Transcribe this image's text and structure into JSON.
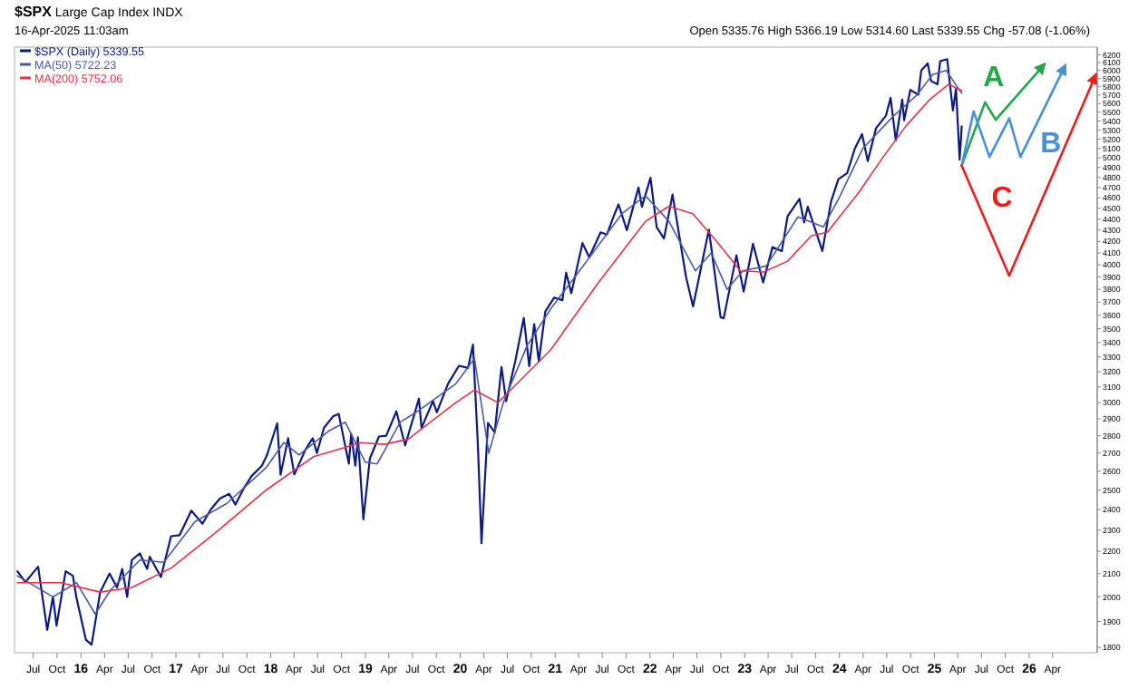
{
  "chart_data": {
    "type": "line",
    "title": "$SPX Large Cap Index INDX",
    "subtitle": "16-Apr-2025 11:03am",
    "annotations": [
      "Open 5335.76 High 5366.19 Low 5314.60 Last 5339.55 Chg -57.08 (-1.06%)"
    ],
    "log": "y",
    "legend": "top left",
    "grid": false,
    "xlim": [
      "2015-04-20",
      "2026-09-20"
    ],
    "ylim": [
      1780,
      6300
    ],
    "xticks": [
      {
        "value": "2015-07-01",
        "label": "Jul"
      },
      {
        "value": "2015-10-01",
        "label": "Oct"
      },
      {
        "value": "2016-01-01",
        "label": "16"
      },
      {
        "value": "2016-04-01",
        "label": "Apr"
      },
      {
        "value": "2016-07-01",
        "label": "Jul"
      },
      {
        "value": "2016-10-01",
        "label": "Oct"
      },
      {
        "value": "2017-01-01",
        "label": "17"
      },
      {
        "value": "2017-04-01",
        "label": "Apr"
      },
      {
        "value": "2017-07-01",
        "label": "Jul"
      },
      {
        "value": "2017-10-01",
        "label": "Oct"
      },
      {
        "value": "2018-01-01",
        "label": "18"
      },
      {
        "value": "2018-04-01",
        "label": "Apr"
      },
      {
        "value": "2018-07-01",
        "label": "Jul"
      },
      {
        "value": "2018-10-01",
        "label": "Oct"
      },
      {
        "value": "2019-01-01",
        "label": "19"
      },
      {
        "value": "2019-04-01",
        "label": "Apr"
      },
      {
        "value": "2019-07-01",
        "label": "Jul"
      },
      {
        "value": "2019-10-01",
        "label": "Oct"
      },
      {
        "value": "2020-01-01",
        "label": "20"
      },
      {
        "value": "2020-04-01",
        "label": "Apr"
      },
      {
        "value": "2020-07-01",
        "label": "Jul"
      },
      {
        "value": "2020-10-01",
        "label": "Oct"
      },
      {
        "value": "2021-01-01",
        "label": "21"
      },
      {
        "value": "2021-04-01",
        "label": "Apr"
      },
      {
        "value": "2021-07-01",
        "label": "Jul"
      },
      {
        "value": "2021-10-01",
        "label": "Oct"
      },
      {
        "value": "2022-01-01",
        "label": "22"
      },
      {
        "value": "2022-04-01",
        "label": "Apr"
      },
      {
        "value": "2022-07-01",
        "label": "Jul"
      },
      {
        "value": "2022-10-01",
        "label": "Oct"
      },
      {
        "value": "2023-01-01",
        "label": "23"
      },
      {
        "value": "2023-04-01",
        "label": "Apr"
      },
      {
        "value": "2023-07-01",
        "label": "Jul"
      },
      {
        "value": "2023-10-01",
        "label": "Oct"
      },
      {
        "value": "2024-01-01",
        "label": "24"
      },
      {
        "value": "2024-04-01",
        "label": "Apr"
      },
      {
        "value": "2024-07-01",
        "label": "Jul"
      },
      {
        "value": "2024-10-01",
        "label": "Oct"
      },
      {
        "value": "2025-01-01",
        "label": "25"
      },
      {
        "value": "2025-04-01",
        "label": "Apr"
      },
      {
        "value": "2025-07-01",
        "label": "Jul"
      },
      {
        "value": "2025-10-01",
        "label": "Oct"
      },
      {
        "value": "2026-01-01",
        "label": "26"
      },
      {
        "value": "2026-04-01",
        "label": "Apr"
      }
    ],
    "yticks": [
      1800,
      1900,
      2000,
      2100,
      2200,
      2300,
      2400,
      2500,
      2600,
      2700,
      2800,
      2900,
      3000,
      3100,
      3200,
      3300,
      3400,
      3500,
      3600,
      3700,
      3800,
      3900,
      4000,
      4100,
      4200,
      4300,
      4400,
      4500,
      4600,
      4700,
      4800,
      4900,
      5000,
      5100,
      5200,
      5300,
      5400,
      5500,
      5600,
      5700,
      5800,
      5900,
      6000,
      6100,
      6200
    ],
    "series": [
      {
        "name": "$SPX (Daily) 5339.55",
        "color": "#0d1a80",
        "x": [
          "2015-05-01",
          "2015-06-01",
          "2015-07-01",
          "2015-07-20",
          "2015-08-24",
          "2015-09-15",
          "2015-09-29",
          "2015-11-03",
          "2015-12-01",
          "2015-12-14",
          "2016-01-20",
          "2016-02-11",
          "2016-03-15",
          "2016-04-20",
          "2016-05-19",
          "2016-06-08",
          "2016-06-27",
          "2016-07-15",
          "2016-08-15",
          "2016-09-12",
          "2016-09-22",
          "2016-11-04",
          "2016-12-13",
          "2017-01-15",
          "2017-03-01",
          "2017-04-13",
          "2017-05-15",
          "2017-06-19",
          "2017-07-25",
          "2017-08-18",
          "2017-09-20",
          "2017-10-20",
          "2017-11-28",
          "2017-12-18",
          "2018-01-26",
          "2018-02-08",
          "2018-03-09",
          "2018-04-02",
          "2018-05-15",
          "2018-06-12",
          "2018-06-28",
          "2018-07-25",
          "2018-08-29",
          "2018-09-20",
          "2018-10-29",
          "2018-11-07",
          "2018-11-23",
          "2018-12-03",
          "2018-12-24",
          "2019-01-18",
          "2019-02-22",
          "2019-03-22",
          "2019-04-30",
          "2019-06-03",
          "2019-07-26",
          "2019-08-05",
          "2019-09-18",
          "2019-10-03",
          "2019-11-15",
          "2019-12-27",
          "2020-01-31",
          "2020-02-19",
          "2020-03-09",
          "2020-03-23",
          "2020-04-17",
          "2020-05-13",
          "2020-06-08",
          "2020-06-26",
          "2020-07-31",
          "2020-09-02",
          "2020-09-23",
          "2020-10-12",
          "2020-10-30",
          "2020-11-24",
          "2020-12-28",
          "2021-01-29",
          "2021-02-12",
          "2021-03-04",
          "2021-04-16",
          "2021-05-12",
          "2021-06-25",
          "2021-07-19",
          "2021-08-18",
          "2021-09-02",
          "2021-10-04",
          "2021-11-18",
          "2021-12-01",
          "2022-01-03",
          "2022-01-27",
          "2022-02-24",
          "2022-03-29",
          "2022-05-20",
          "2022-06-16",
          "2022-08-16",
          "2022-09-30",
          "2022-10-12",
          "2022-11-30",
          "2022-12-28",
          "2023-02-02",
          "2023-03-13",
          "2023-04-18",
          "2023-05-24",
          "2023-06-15",
          "2023-07-31",
          "2023-08-18",
          "2023-09-01",
          "2023-10-27",
          "2023-11-30",
          "2023-12-28",
          "2024-01-31",
          "2024-02-29",
          "2024-03-28",
          "2024-04-19",
          "2024-05-21",
          "2024-06-28",
          "2024-07-16",
          "2024-08-05",
          "2024-08-30",
          "2024-09-06",
          "2024-09-30",
          "2024-10-31",
          "2024-11-11",
          "2024-12-06",
          "2024-12-19",
          "2025-01-13",
          "2025-01-23",
          "2025-02-19",
          "2025-03-13",
          "2025-03-25",
          "2025-04-08",
          "2025-04-16"
        ],
        "values": [
          2110,
          2063,
          2104,
          2130,
          1867,
          2000,
          1884,
          2110,
          2090,
          2000,
          1829,
          1810,
          2020,
          2100,
          2040,
          2120,
          2000,
          2160,
          2190,
          2120,
          2175,
          2085,
          2270,
          2275,
          2395,
          2330,
          2400,
          2455,
          2480,
          2425,
          2510,
          2575,
          2630,
          2690,
          2873,
          2581,
          2785,
          2582,
          2720,
          2785,
          2700,
          2846,
          2915,
          2930,
          2641,
          2810,
          2630,
          2790,
          2351,
          2670,
          2795,
          2800,
          2946,
          2744,
          3025,
          2845,
          3010,
          2940,
          3120,
          3240,
          3225,
          3386,
          2750,
          2237,
          2875,
          2820,
          3232,
          3009,
          3270,
          3580,
          3237,
          3534,
          3270,
          3630,
          3735,
          3715,
          3935,
          3770,
          4185,
          4063,
          4280,
          4260,
          4450,
          4537,
          4300,
          4700,
          4515,
          4796,
          4326,
          4225,
          4631,
          3900,
          3667,
          4305,
          3585,
          3577,
          4080,
          3783,
          4179,
          3855,
          4150,
          4115,
          4425,
          4589,
          4370,
          4515,
          4117,
          4568,
          4783,
          4845,
          5096,
          5254,
          4967,
          5320,
          5460,
          5667,
          5186,
          5648,
          5408,
          5762,
          5705,
          6000,
          6090,
          5870,
          5830,
          6118,
          6144,
          5521,
          5776,
          4982,
          5339.55
        ]
      },
      {
        "name": "MA(50) 5722.23",
        "color": "#4a5aa8",
        "x": [
          "2015-05-01",
          "2015-09-15",
          "2015-12-15",
          "2016-02-25",
          "2016-04-25",
          "2016-08-15",
          "2016-11-15",
          "2017-03-15",
          "2017-07-15",
          "2017-12-15",
          "2018-02-20",
          "2018-04-20",
          "2018-08-15",
          "2018-10-15",
          "2018-12-31",
          "2019-02-15",
          "2019-05-15",
          "2019-07-15",
          "2019-12-15",
          "2020-02-25",
          "2020-04-20",
          "2020-06-15",
          "2020-09-15",
          "2020-12-15",
          "2021-04-15",
          "2021-09-15",
          "2021-12-15",
          "2022-03-15",
          "2022-06-25",
          "2022-08-25",
          "2022-10-25",
          "2022-12-25",
          "2023-03-25",
          "2023-07-25",
          "2023-10-31",
          "2023-12-31",
          "2024-03-31",
          "2024-07-25",
          "2024-10-25",
          "2024-12-25",
          "2025-02-15",
          "2025-04-16"
        ],
        "values": [
          2090,
          2000,
          2060,
          1930,
          2030,
          2160,
          2150,
          2340,
          2430,
          2620,
          2760,
          2690,
          2830,
          2880,
          2650,
          2640,
          2880,
          2940,
          3120,
          3290,
          2700,
          3000,
          3380,
          3650,
          3980,
          4450,
          4620,
          4380,
          3950,
          4100,
          3800,
          3950,
          3990,
          4420,
          4330,
          4600,
          5100,
          5450,
          5700,
          5950,
          6000,
          5722.23
        ]
      },
      {
        "name": "MA(200) 5752.06",
        "color": "#e8324a",
        "x": [
          "2015-05-01",
          "2015-10-15",
          "2016-03-15",
          "2016-07-15",
          "2016-12-15",
          "2017-06-15",
          "2017-12-15",
          "2018-06-15",
          "2018-12-15",
          "2019-03-15",
          "2019-06-15",
          "2019-12-15",
          "2020-02-25",
          "2020-05-25",
          "2020-07-25",
          "2020-12-15",
          "2021-06-15",
          "2021-12-15",
          "2022-03-15",
          "2022-06-15",
          "2022-09-15",
          "2022-12-15",
          "2023-03-15",
          "2023-06-15",
          "2023-09-15",
          "2023-11-15",
          "2024-03-15",
          "2024-06-15",
          "2024-09-15",
          "2024-12-15",
          "2025-02-25",
          "2025-04-16"
        ],
        "values": [
          2060,
          2060,
          2020,
          2040,
          2125,
          2300,
          2500,
          2680,
          2760,
          2750,
          2780,
          3000,
          3080,
          3000,
          3100,
          3350,
          3850,
          4380,
          4520,
          4450,
          4200,
          3950,
          3940,
          4030,
          4250,
          4280,
          4650,
          5000,
          5350,
          5650,
          5830,
          5752.06
        ]
      },
      {
        "name": "A",
        "color": "#22a846",
        "x": [
          "2025-04-16",
          "2025-07-15",
          "2025-08-25",
          "2026-03-01"
        ],
        "values": [
          4920,
          5615,
          5413,
          6080
        ]
      },
      {
        "name": "B",
        "color": "#4a90d9",
        "x": [
          "2025-04-16",
          "2025-06-01",
          "2025-08-01",
          "2025-10-16",
          "2025-11-28",
          "2026-05-20"
        ],
        "values": [
          4920,
          5510,
          5010,
          5430,
          5010,
          6065
        ]
      },
      {
        "name": "C",
        "color": "#ee1c1c",
        "x": [
          "2025-04-16",
          "2025-10-16",
          "2026-09-15"
        ],
        "values": [
          4920,
          3910,
          5950
        ]
      }
    ]
  }
}
